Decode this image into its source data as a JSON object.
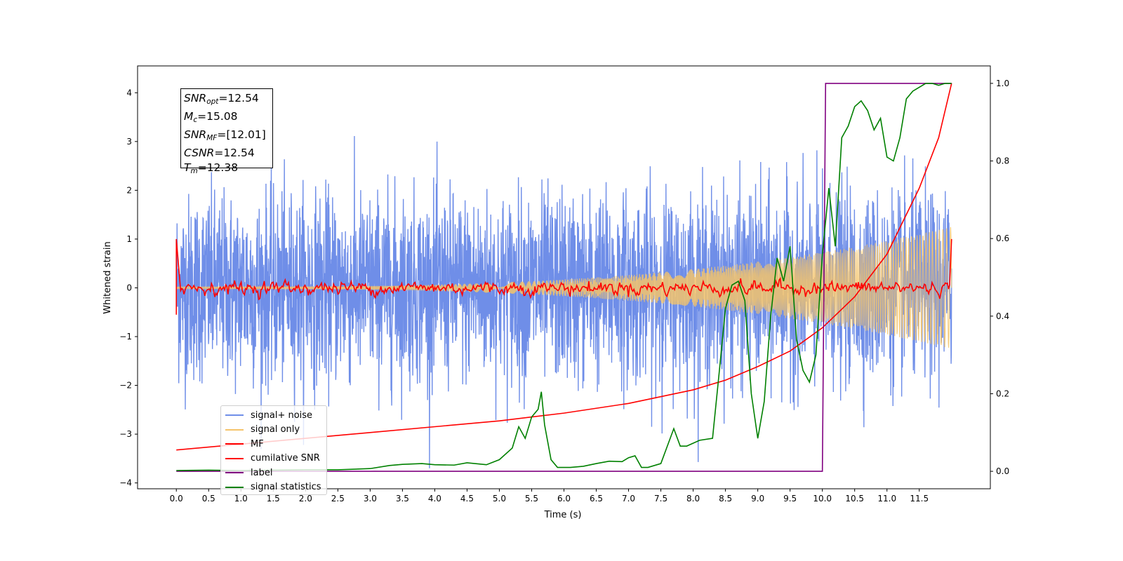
{
  "chart_data": {
    "type": "line",
    "title": "",
    "xlabel": "Time (s)",
    "ylabel_left": "Whitened strain",
    "ylabel_right": "",
    "xlim": [
      -0.6,
      12.6
    ],
    "ylim_left": [
      -4.12,
      4.55
    ],
    "ylim_right": [
      -0.045,
      1.045
    ],
    "x_ticks": [
      "0.0",
      "0.5",
      "1.0",
      "1.5",
      "2.0",
      "2.5",
      "3.0",
      "3.5",
      "4.0",
      "4.5",
      "5.0",
      "5.5",
      "6.0",
      "6.5",
      "7.0",
      "7.5",
      "8.0",
      "8.5",
      "9.0",
      "9.5",
      "10.0",
      "10.5",
      "11.0",
      "11.5"
    ],
    "y_ticks_left": [
      "4",
      "3",
      "2",
      "1",
      "0",
      "−1",
      "−2",
      "−3",
      "−4"
    ],
    "y_ticks_right": [
      "1.0",
      "0.8",
      "0.6",
      "0.4",
      "0.2",
      "0.0"
    ],
    "grid": false,
    "legend_position": "lower-left",
    "series": [
      {
        "name": "signal+ noise",
        "axis": "left",
        "color": "#6f8ee8",
        "description_range": [
          -3.7,
          4.2
        ],
        "x_range": [
          0.0,
          12.0
        ]
      },
      {
        "name": "signal only",
        "axis": "left",
        "color": "#f5c46b",
        "amplitude_start": 0.02,
        "amplitude_end": 1.25,
        "x_range": [
          0.0,
          12.0
        ]
      },
      {
        "name": "MF",
        "axis": "left",
        "color": "#ff0000",
        "x": [
          0.0,
          0.05,
          12.0
        ],
        "y": [
          1.0,
          0.0,
          0.0
        ],
        "end_spike": 1.0
      },
      {
        "name": "cumilative SNR",
        "axis": "right",
        "color": "#ff0000",
        "x": [
          0.0,
          1.0,
          2.0,
          3.0,
          4.0,
          5.0,
          6.0,
          7.0,
          8.0,
          8.5,
          9.0,
          9.5,
          10.0,
          10.5,
          11.0,
          11.5,
          11.8,
          12.0
        ],
        "y": [
          0.055,
          0.07,
          0.085,
          0.1,
          0.115,
          0.13,
          0.15,
          0.175,
          0.21,
          0.235,
          0.27,
          0.31,
          0.37,
          0.45,
          0.56,
          0.73,
          0.86,
          1.0
        ]
      },
      {
        "name": "label",
        "axis": "right",
        "color": "#800080",
        "x": [
          0.0,
          10.0,
          10.05,
          12.0
        ],
        "y": [
          0.0,
          0.0,
          1.0,
          1.0
        ]
      },
      {
        "name": "signal statistics",
        "axis": "right",
        "color": "#008000",
        "x": [
          0.0,
          0.5,
          1.0,
          1.5,
          2.0,
          2.5,
          3.0,
          3.3,
          3.5,
          3.8,
          4.0,
          4.3,
          4.5,
          4.8,
          5.0,
          5.2,
          5.3,
          5.4,
          5.5,
          5.6,
          5.65,
          5.7,
          5.8,
          5.9,
          6.1,
          6.3,
          6.5,
          6.7,
          6.9,
          7.0,
          7.1,
          7.2,
          7.3,
          7.5,
          7.7,
          7.8,
          7.9,
          8.1,
          8.3,
          8.4,
          8.5,
          8.6,
          8.7,
          8.8,
          8.9,
          9.0,
          9.1,
          9.2,
          9.3,
          9.4,
          9.5,
          9.6,
          9.7,
          9.8,
          9.9,
          10.0,
          10.1,
          10.2,
          10.3,
          10.4,
          10.5,
          10.6,
          10.7,
          10.8,
          10.9,
          11.0,
          11.1,
          11.2,
          11.3,
          11.4,
          11.5,
          11.6,
          11.7,
          11.8,
          11.9,
          12.0
        ],
        "y": [
          0.002,
          0.003,
          0.002,
          0.003,
          0.004,
          0.004,
          0.007,
          0.015,
          0.018,
          0.02,
          0.017,
          0.016,
          0.022,
          0.017,
          0.03,
          0.06,
          0.115,
          0.085,
          0.14,
          0.16,
          0.205,
          0.12,
          0.03,
          0.01,
          0.01,
          0.013,
          0.02,
          0.026,
          0.025,
          0.035,
          0.04,
          0.01,
          0.01,
          0.02,
          0.11,
          0.065,
          0.065,
          0.08,
          0.085,
          0.25,
          0.42,
          0.48,
          0.49,
          0.44,
          0.2,
          0.085,
          0.18,
          0.4,
          0.55,
          0.49,
          0.58,
          0.34,
          0.26,
          0.23,
          0.3,
          0.56,
          0.73,
          0.58,
          0.86,
          0.89,
          0.94,
          0.955,
          0.93,
          0.88,
          0.91,
          0.81,
          0.8,
          0.86,
          0.96,
          0.98,
          0.99,
          1.0,
          1.0,
          0.995,
          1.0,
          1.0
        ]
      }
    ]
  },
  "info_box": {
    "snr_opt_var": "SNR",
    "snr_opt_sub": "opt",
    "snr_opt_val": "=12.54",
    "mc_var": "M",
    "mc_sub": "c",
    "mc_val": "=15.08",
    "snr_mf_var": "SNR",
    "snr_mf_sub": "MF",
    "snr_mf_val": "=[12.01]",
    "csnr_var": "CSNR",
    "csnr_val": "=12.54",
    "tm_var": "T",
    "tm_sub": "m",
    "tm_val": "=12.38"
  }
}
